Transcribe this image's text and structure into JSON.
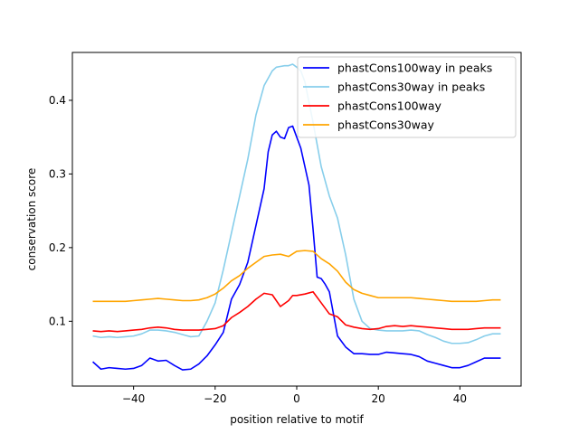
{
  "chart_data": {
    "type": "line",
    "xlabel": "position relative to motif",
    "ylabel": "conservation score",
    "xlim": [
      -55,
      55
    ],
    "ylim": [
      0.012,
      0.465
    ],
    "xticks": [
      -40,
      -20,
      0,
      20,
      40
    ],
    "xtick_labels": [
      "−40",
      "−20",
      "0",
      "20",
      "40"
    ],
    "yticks": [
      0.1,
      0.2,
      0.3,
      0.4
    ],
    "ytick_labels": [
      "0.1",
      "0.2",
      "0.3",
      "0.4"
    ],
    "grid": false,
    "legend_position": "top-right",
    "series": [
      {
        "name": "phastCons100way in peaks",
        "color": "#0000ff",
        "x": [
          -50,
          -48,
          -46,
          -44,
          -42,
          -40,
          -38,
          -36,
          -34,
          -32,
          -30,
          -28,
          -26,
          -24,
          -22,
          -20,
          -18,
          -16,
          -14,
          -12,
          -10,
          -8,
          -7,
          -6,
          -5,
          -4,
          -3,
          -2,
          -1,
          0,
          1,
          2,
          3,
          4,
          5,
          6,
          7,
          8,
          10,
          12,
          14,
          16,
          18,
          20,
          22,
          24,
          26,
          28,
          30,
          32,
          34,
          36,
          38,
          40,
          42,
          44,
          46,
          48,
          50
        ],
        "y": [
          0.045,
          0.035,
          0.037,
          0.036,
          0.035,
          0.036,
          0.04,
          0.05,
          0.046,
          0.047,
          0.04,
          0.034,
          0.035,
          0.042,
          0.053,
          0.068,
          0.085,
          0.13,
          0.15,
          0.18,
          0.23,
          0.28,
          0.33,
          0.353,
          0.358,
          0.35,
          0.348,
          0.363,
          0.365,
          0.35,
          0.335,
          0.31,
          0.285,
          0.225,
          0.16,
          0.158,
          0.15,
          0.14,
          0.08,
          0.065,
          0.056,
          0.056,
          0.055,
          0.055,
          0.058,
          0.057,
          0.056,
          0.055,
          0.052,
          0.046,
          0.043,
          0.04,
          0.037,
          0.037,
          0.04,
          0.045,
          0.05,
          0.05,
          0.05
        ]
      },
      {
        "name": "phastCons30way in peaks",
        "color": "#87ceeb",
        "x": [
          -50,
          -48,
          -46,
          -44,
          -42,
          -40,
          -38,
          -36,
          -34,
          -32,
          -30,
          -28,
          -26,
          -24,
          -22,
          -20,
          -18,
          -16,
          -14,
          -12,
          -10,
          -8,
          -6,
          -5,
          -4,
          -3,
          -2,
          -1,
          0,
          1,
          2,
          4,
          6,
          8,
          10,
          12,
          14,
          16,
          18,
          20,
          22,
          24,
          26,
          28,
          30,
          32,
          34,
          36,
          38,
          40,
          42,
          44,
          46,
          48,
          50
        ],
        "y": [
          0.08,
          0.078,
          0.079,
          0.078,
          0.079,
          0.08,
          0.083,
          0.088,
          0.088,
          0.087,
          0.085,
          0.082,
          0.079,
          0.08,
          0.1,
          0.125,
          0.17,
          0.22,
          0.27,
          0.32,
          0.38,
          0.42,
          0.44,
          0.445,
          0.446,
          0.447,
          0.447,
          0.449,
          0.445,
          0.44,
          0.425,
          0.37,
          0.31,
          0.27,
          0.24,
          0.19,
          0.13,
          0.1,
          0.09,
          0.088,
          0.087,
          0.087,
          0.087,
          0.088,
          0.087,
          0.082,
          0.078,
          0.073,
          0.07,
          0.07,
          0.071,
          0.075,
          0.08,
          0.083,
          0.083
        ]
      },
      {
        "name": "phastCons100way",
        "color": "#ff0000",
        "x": [
          -50,
          -48,
          -46,
          -44,
          -42,
          -40,
          -38,
          -36,
          -34,
          -32,
          -30,
          -28,
          -26,
          -24,
          -22,
          -20,
          -18,
          -16,
          -14,
          -12,
          -10,
          -8,
          -6,
          -4,
          -2,
          -1,
          0,
          2,
          4,
          6,
          8,
          10,
          12,
          14,
          16,
          18,
          20,
          22,
          24,
          26,
          28,
          30,
          32,
          34,
          36,
          38,
          40,
          42,
          44,
          46,
          48,
          50
        ],
        "y": [
          0.087,
          0.086,
          0.087,
          0.086,
          0.087,
          0.088,
          0.089,
          0.091,
          0.092,
          0.091,
          0.089,
          0.088,
          0.088,
          0.088,
          0.089,
          0.09,
          0.094,
          0.105,
          0.112,
          0.12,
          0.13,
          0.138,
          0.136,
          0.12,
          0.128,
          0.135,
          0.135,
          0.137,
          0.14,
          0.125,
          0.11,
          0.106,
          0.095,
          0.092,
          0.09,
          0.089,
          0.09,
          0.093,
          0.094,
          0.093,
          0.094,
          0.093,
          0.092,
          0.091,
          0.09,
          0.089,
          0.089,
          0.089,
          0.09,
          0.091,
          0.091,
          0.091
        ]
      },
      {
        "name": "phastCons30way",
        "color": "#ffa500",
        "x": [
          -50,
          -48,
          -46,
          -44,
          -42,
          -40,
          -38,
          -36,
          -34,
          -32,
          -30,
          -28,
          -26,
          -24,
          -22,
          -20,
          -18,
          -16,
          -14,
          -12,
          -10,
          -8,
          -6,
          -4,
          -2,
          0,
          2,
          4,
          6,
          8,
          10,
          12,
          14,
          16,
          18,
          20,
          22,
          24,
          26,
          28,
          30,
          32,
          34,
          36,
          38,
          40,
          42,
          44,
          46,
          48,
          50
        ],
        "y": [
          0.127,
          0.127,
          0.127,
          0.127,
          0.127,
          0.128,
          0.129,
          0.13,
          0.131,
          0.13,
          0.129,
          0.128,
          0.128,
          0.129,
          0.132,
          0.137,
          0.145,
          0.155,
          0.162,
          0.172,
          0.18,
          0.188,
          0.19,
          0.191,
          0.188,
          0.195,
          0.196,
          0.195,
          0.185,
          0.178,
          0.168,
          0.153,
          0.143,
          0.138,
          0.135,
          0.132,
          0.132,
          0.132,
          0.132,
          0.132,
          0.131,
          0.13,
          0.129,
          0.128,
          0.127,
          0.127,
          0.127,
          0.127,
          0.128,
          0.129,
          0.129
        ]
      }
    ]
  }
}
